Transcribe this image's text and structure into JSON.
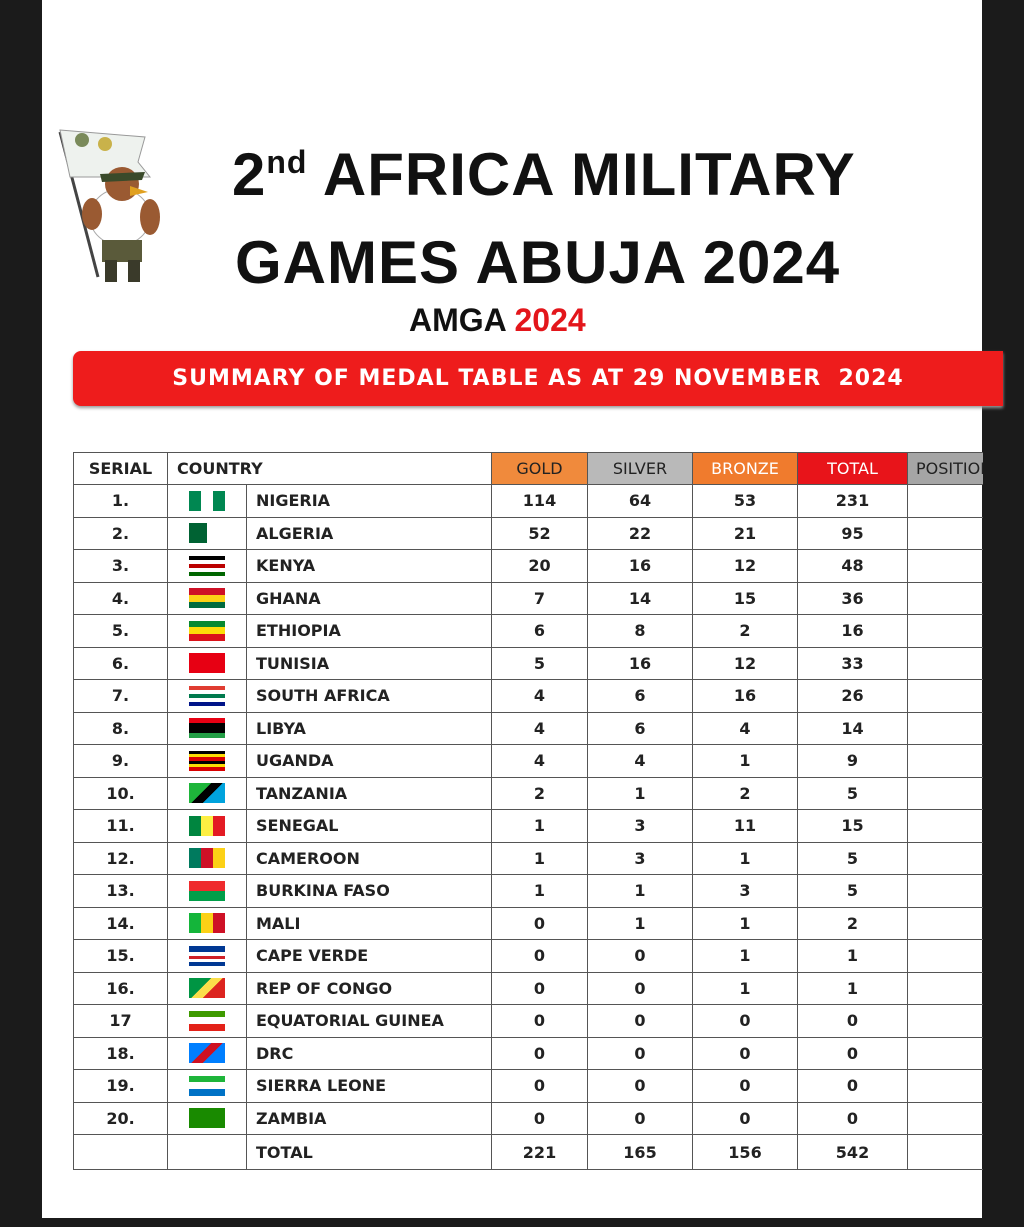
{
  "header": {
    "title_prefix": "2",
    "title_superscript": "nd",
    "title_line1": "AFRICA MILITARY",
    "title_line2": "GAMES ABUJA 2024",
    "subtitle": "AMGA",
    "subtitle_year": "2024",
    "banner": "SUMMARY OF MEDAL TABLE AS AT 29 NOVEMBER  2024"
  },
  "table": {
    "columns": [
      "SERIAL",
      "COUNTRY",
      "GOLD",
      "SILVER",
      "BRONZE",
      "TOTAL",
      "POSITION"
    ],
    "rows": [
      [
        "1.",
        "NIGERIA",
        114,
        64,
        53,
        231
      ],
      [
        "2.",
        "ALGERIA",
        52,
        22,
        21,
        95
      ],
      [
        "3.",
        "KENYA",
        20,
        16,
        12,
        48
      ],
      [
        "4.",
        "GHANA",
        7,
        14,
        15,
        36
      ],
      [
        "5.",
        "ETHIOPIA",
        6,
        8,
        2,
        16
      ],
      [
        "6.",
        "TUNISIA",
        5,
        16,
        12,
        33
      ],
      [
        "7.",
        "SOUTH AFRICA",
        4,
        6,
        16,
        26
      ],
      [
        "8.",
        "LIBYA",
        4,
        6,
        4,
        14
      ],
      [
        "9.",
        "UGANDA",
        4,
        4,
        1,
        9
      ],
      [
        "10.",
        "TANZANIA",
        2,
        1,
        2,
        5
      ],
      [
        "11.",
        "SENEGAL",
        1,
        3,
        11,
        15
      ],
      [
        "12.",
        "CAMEROON",
        1,
        3,
        1,
        5
      ],
      [
        "13.",
        "BURKINA FASO",
        1,
        1,
        3,
        5
      ],
      [
        "14.",
        "MALI",
        0,
        1,
        1,
        2
      ],
      [
        "15.",
        "CAPE VERDE",
        0,
        0,
        1,
        1
      ],
      [
        "16.",
        "REP OF CONGO",
        0,
        0,
        1,
        1
      ],
      [
        "17",
        "EQUATORIAL GUINEA",
        0,
        0,
        0,
        0
      ],
      [
        "18.",
        "DRC",
        0,
        0,
        0,
        0
      ],
      [
        "19.",
        "SIERRA LEONE",
        0,
        0,
        0,
        0
      ],
      [
        "20.",
        "ZAMBIA",
        0,
        0,
        0,
        0
      ]
    ],
    "total_row": [
      "TOTAL",
      221,
      165,
      156,
      542
    ]
  }
}
